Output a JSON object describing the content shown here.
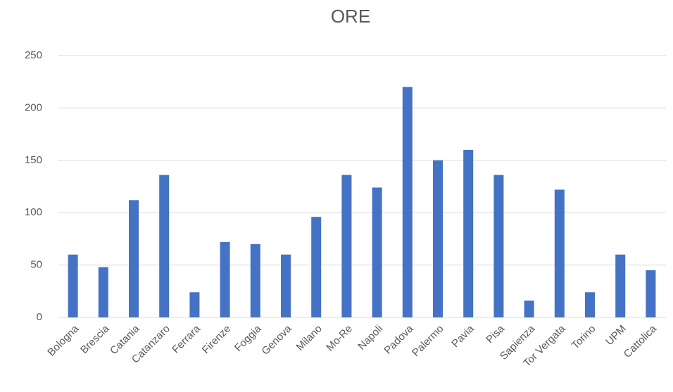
{
  "chart_data": {
    "type": "bar",
    "title": "ORE",
    "categories": [
      "Bologna",
      "Brescia",
      "Catania",
      "Catanzaro",
      "Ferrara",
      "Firenze",
      "Foggia",
      "Genova",
      "Milano",
      "Mo-Re",
      "Napoli",
      "Padova",
      "Palermo",
      "Pavia",
      "Pisa",
      "Sapienza",
      "Tor Vergata",
      "Torino",
      "UPM",
      "Cattolica"
    ],
    "values": [
      60,
      48,
      112,
      136,
      24,
      72,
      70,
      60,
      96,
      136,
      124,
      220,
      150,
      160,
      136,
      16,
      122,
      24,
      60,
      45
    ],
    "color": "#4472c4",
    "ylim": [
      0,
      250
    ],
    "yticks": [
      0,
      50,
      100,
      150,
      200,
      250
    ],
    "grid": true
  }
}
